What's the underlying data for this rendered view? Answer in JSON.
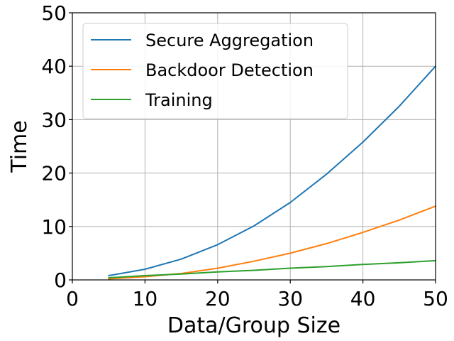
{
  "chart_data": {
    "type": "line",
    "title": "",
    "xlabel": "Data/Group Size",
    "ylabel": "Time",
    "xlim": [
      0,
      50
    ],
    "ylim": [
      0,
      50
    ],
    "xticks": [
      0,
      10,
      20,
      30,
      40,
      50
    ],
    "yticks": [
      0,
      10,
      20,
      30,
      40,
      50
    ],
    "grid": true,
    "legend_position": "top-left",
    "x": [
      5,
      10,
      15,
      20,
      25,
      30,
      35,
      40,
      45,
      50
    ],
    "series": [
      {
        "name": "Secure Aggregation",
        "color": "#1f77b4",
        "values": [
          0.8,
          2.0,
          3.9,
          6.6,
          10.1,
          14.5,
          19.8,
          25.8,
          32.5,
          40.0
        ]
      },
      {
        "name": "Backdoor Detection",
        "color": "#ff7f0e",
        "values": [
          0.2,
          0.6,
          1.2,
          2.2,
          3.5,
          5.0,
          6.8,
          8.9,
          11.2,
          13.8
        ]
      },
      {
        "name": "Training",
        "color": "#2ca02c",
        "values": [
          0.4,
          0.8,
          1.1,
          1.5,
          1.8,
          2.2,
          2.5,
          2.9,
          3.2,
          3.6
        ]
      }
    ]
  }
}
